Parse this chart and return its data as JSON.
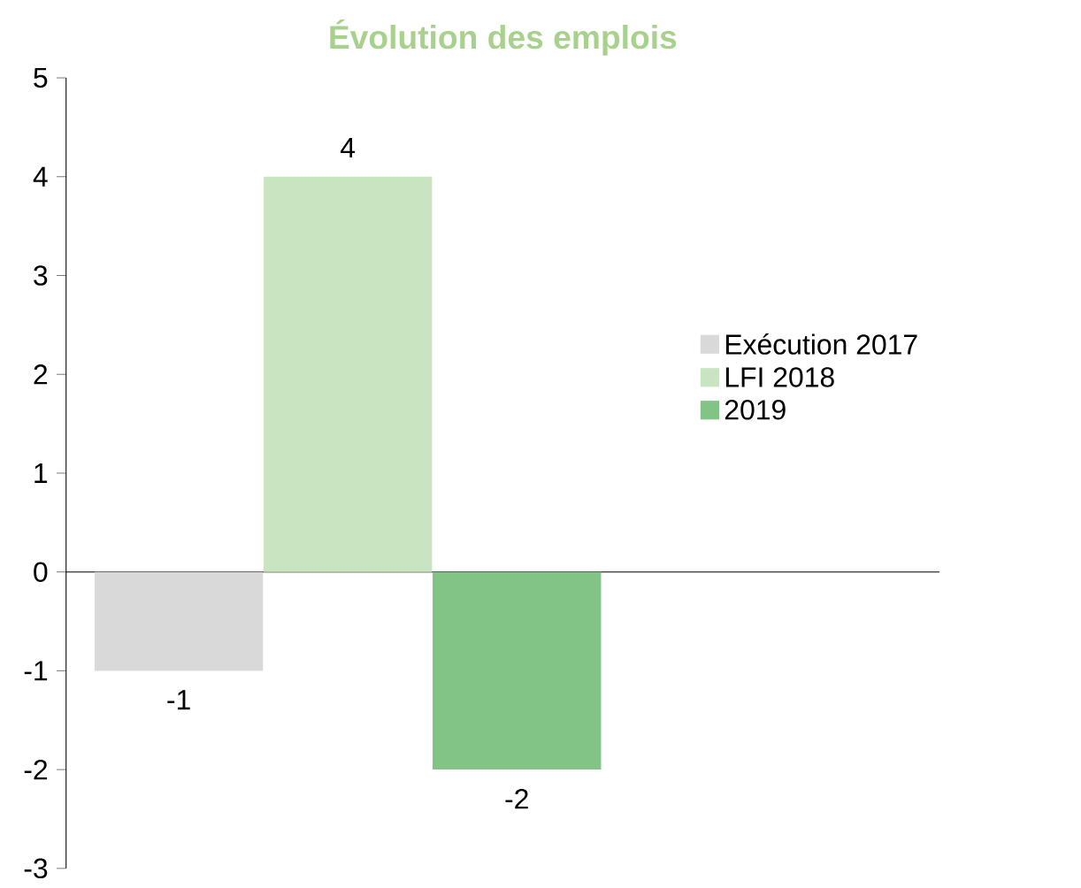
{
  "chart_data": {
    "type": "bar",
    "title": "Évolution des emplois",
    "categories": [
      null
    ],
    "series": [
      {
        "name": "Exécution 2017",
        "color": "#d9d9d9",
        "values": [
          -1
        ]
      },
      {
        "name": "LFI 2018",
        "color": "#c9e4c0",
        "values": [
          4
        ]
      },
      {
        "name": "2019",
        "color": "#82c386",
        "values": [
          -2
        ]
      }
    ],
    "ylim": [
      -3,
      5
    ],
    "yticks": [
      -3,
      -2,
      -1,
      0,
      1,
      2,
      3,
      4,
      5
    ],
    "data_labels": true,
    "legend": "right"
  }
}
